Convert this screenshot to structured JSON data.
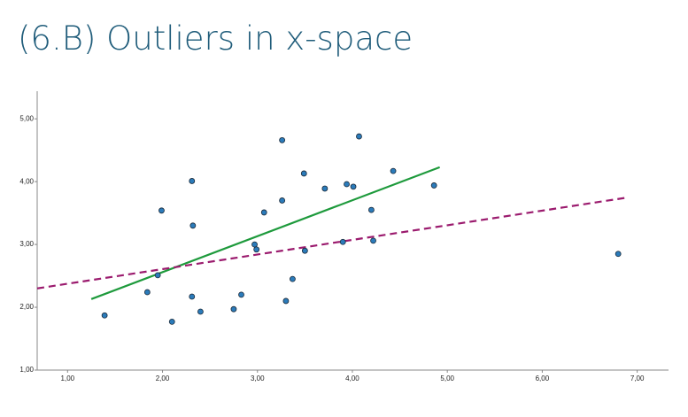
{
  "title": "(6.B) Outliers in x-space",
  "chart_data": {
    "type": "scatter",
    "xlim": [
      0.68,
      7.33
    ],
    "ylim": [
      1,
      5.44
    ],
    "xticks": [
      {
        "value": 1,
        "label": "1,00"
      },
      {
        "value": 2,
        "label": "2,00"
      },
      {
        "value": 3,
        "label": "3,00"
      },
      {
        "value": 4,
        "label": "4,00"
      },
      {
        "value": 5,
        "label": "5,00"
      },
      {
        "value": 6,
        "label": "6,00"
      },
      {
        "value": 7,
        "label": "7,00"
      }
    ],
    "yticks": [
      {
        "value": 1,
        "label": "1,00"
      },
      {
        "value": 2,
        "label": "2,00"
      },
      {
        "value": 3,
        "label": "3,00"
      },
      {
        "value": 4,
        "label": "4,00"
      },
      {
        "value": 5,
        "label": "5,00"
      }
    ],
    "grid": false,
    "points": {
      "color": "#2b7bba",
      "x": [
        1.39,
        1.84,
        1.95,
        1.99,
        2.1,
        2.31,
        2.32,
        2.31,
        2.4,
        2.75,
        2.83,
        2.97,
        2.99,
        3.07,
        3.26,
        3.26,
        3.3,
        3.37,
        3.49,
        3.5,
        3.71,
        3.9,
        3.94,
        4.01,
        4.07,
        4.2,
        4.22,
        4.43,
        4.86,
        6.8
      ],
      "y": [
        1.87,
        2.24,
        2.51,
        3.54,
        1.77,
        4.01,
        3.3,
        2.17,
        1.93,
        1.97,
        2.2,
        3.0,
        2.92,
        3.51,
        4.66,
        3.7,
        2.1,
        2.45,
        4.13,
        2.9,
        3.89,
        3.04,
        3.96,
        3.92,
        4.72,
        3.55,
        3.06,
        4.17,
        3.94,
        2.85
      ]
    },
    "lines": [
      {
        "color": "#1e9a3c",
        "dashed": false,
        "x": [
          1.25,
          4.92
        ],
        "y": [
          2.13,
          4.23
        ]
      },
      {
        "color": "#9b1b6e",
        "dashed": true,
        "x": [
          0.68,
          6.91
        ],
        "y": [
          2.3,
          3.75
        ]
      }
    ]
  }
}
